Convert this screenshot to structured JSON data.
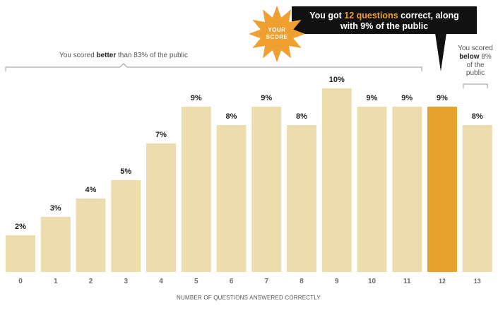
{
  "chart_data": {
    "type": "bar",
    "categories": [
      "0",
      "1",
      "2",
      "3",
      "4",
      "5",
      "6",
      "7",
      "8",
      "9",
      "10",
      "11",
      "12",
      "13"
    ],
    "values": [
      2,
      3,
      4,
      5,
      7,
      9,
      8,
      9,
      8,
      10,
      9,
      9,
      9,
      8
    ],
    "value_labels": [
      "2%",
      "3%",
      "4%",
      "5%",
      "7%",
      "9%",
      "8%",
      "9%",
      "8%",
      "10%",
      "9%",
      "9%",
      "9%",
      "8%"
    ],
    "highlight_index": 12,
    "xlabel": "NUMBER OF QUESTIONS ANSWERED CORRECTLY",
    "ylabel": "",
    "ylim": [
      0,
      10
    ],
    "grid": false
  },
  "colors": {
    "bar": "#eddcae",
    "highlight_bar": "#e8a22e",
    "callout_bg": "#111111",
    "callout_accent": "#f0a030",
    "badge": "#f0a030"
  },
  "badge": {
    "line1": "YOUR",
    "line2": "SCORE"
  },
  "callout": {
    "line1_prefix": "You got ",
    "line1_highlight": "12 questions",
    "line1_suffix": " correct, along",
    "line2": "with 9% of the public"
  },
  "better_annotation": {
    "prefix": "You scored ",
    "bold": "better",
    "suffix": " than 83% of the public"
  },
  "below_annotation": {
    "line1": "You scored",
    "line2_bold": "below",
    "line2_rest": " 8%",
    "line3": "of the",
    "line4": "public"
  }
}
